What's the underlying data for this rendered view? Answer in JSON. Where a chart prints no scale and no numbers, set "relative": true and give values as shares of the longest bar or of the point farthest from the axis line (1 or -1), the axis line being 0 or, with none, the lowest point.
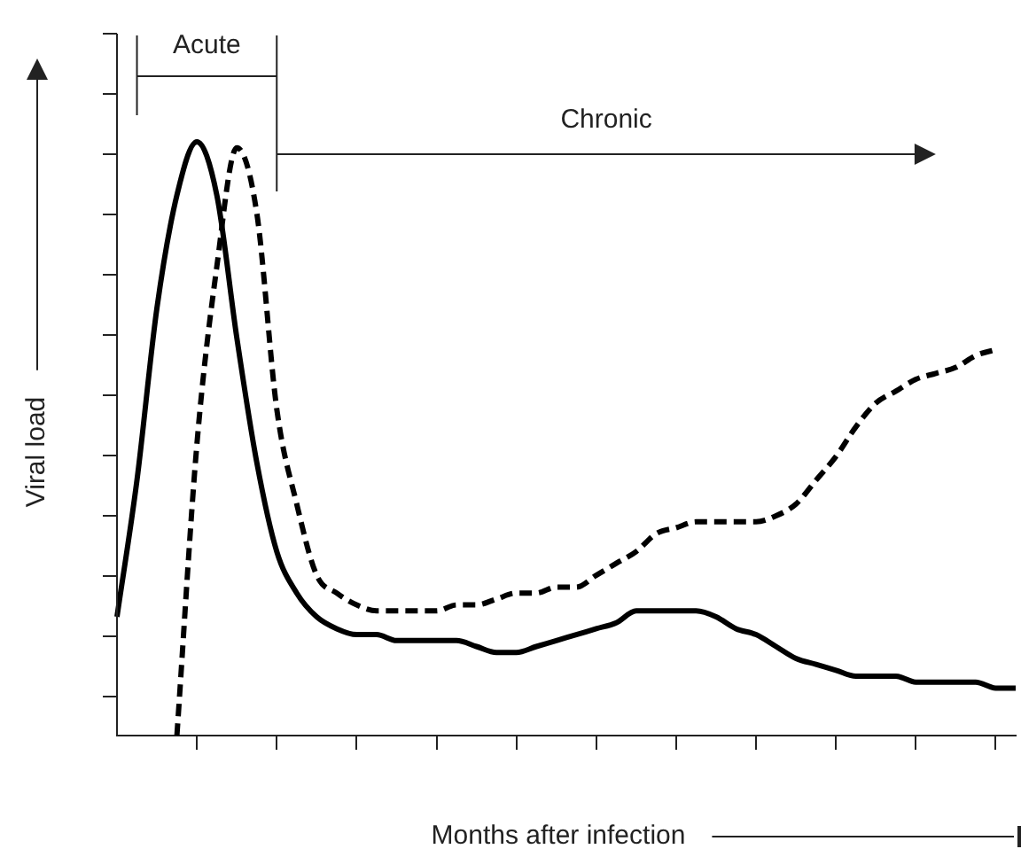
{
  "chart_data": {
    "type": "line",
    "relative": true,
    "xlabel": "Months after infection",
    "ylabel": "Viral load",
    "annotations": [
      "Acute",
      "Chronic"
    ],
    "categories": [
      null,
      null,
      null,
      null,
      null,
      null,
      null,
      null,
      null,
      null,
      null,
      null,
      null,
      null,
      null,
      null,
      null,
      null,
      null,
      null,
      null,
      null,
      null,
      null,
      null,
      null,
      null,
      null,
      null,
      null,
      null,
      null,
      null,
      null,
      null,
      null,
      null,
      null,
      null,
      null,
      null,
      null,
      null,
      null,
      null,
      null
    ],
    "series": [
      {
        "color": "#000000",
        "line_style": "solid",
        "values": [
          0.2,
          0.43,
          0.72,
          0.91,
          1,
          0.91,
          0.67,
          0.46,
          0.31,
          0.24,
          0.2,
          0.18,
          0.17,
          0.17,
          0.16,
          0.16,
          0.16,
          0.16,
          0.15,
          0.14,
          0.14,
          0.15,
          0.16,
          0.17,
          0.18,
          0.19,
          0.21,
          0.21,
          0.21,
          0.21,
          0.2,
          0.18,
          0.17,
          0.15,
          0.13,
          0.12,
          0.11,
          0.1,
          0.1,
          0.1,
          0.09,
          0.09,
          0.09,
          0.09,
          0.08,
          0.08
        ]
      },
      {
        "color": "#000000",
        "line_style": "dashed",
        "values": [
          null,
          null,
          null,
          0,
          0.49,
          0.79,
          0.99,
          0.88,
          0.55,
          0.39,
          0.27,
          0.24,
          0.22,
          0.21,
          0.21,
          0.21,
          0.21,
          0.22,
          0.22,
          0.23,
          0.24,
          0.24,
          0.25,
          0.25,
          0.27,
          0.29,
          0.31,
          0.34,
          0.35,
          0.36,
          0.36,
          0.36,
          0.36,
          0.37,
          0.39,
          0.43,
          0.47,
          0.52,
          0.56,
          0.58,
          0.6,
          0.61,
          0.62,
          0.64,
          0.65,
          null
        ]
      }
    ]
  }
}
